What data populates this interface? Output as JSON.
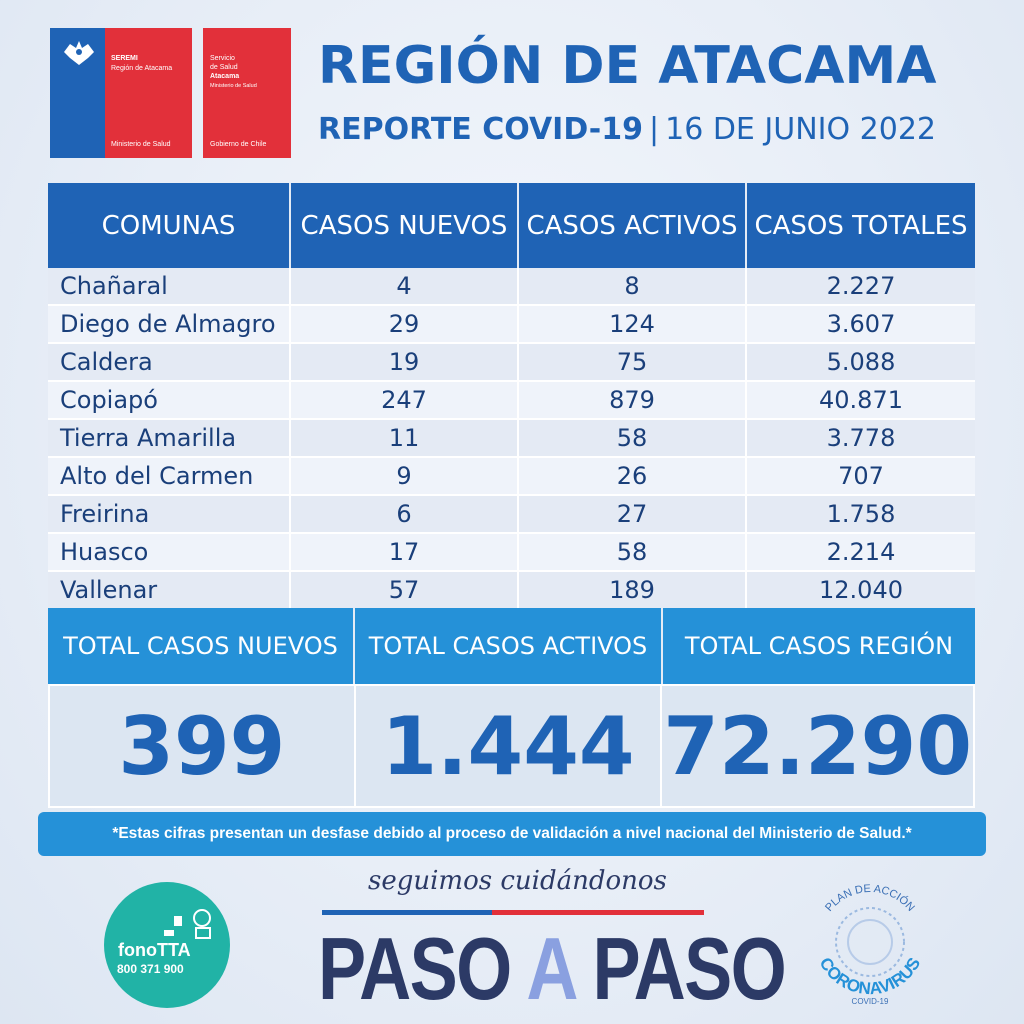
{
  "logos": {
    "seremi_line1": "SEREMI",
    "seremi_line2": "Región de Atacama",
    "seremi_footer": "Ministerio de Salud",
    "servicio_line1": "Servicio",
    "servicio_line2": "de Salud",
    "servicio_line3": "Atacama",
    "servicio_line4": "Ministerio de Salud",
    "servicio_footer": "Gobierno de Chile"
  },
  "header": {
    "title": "REGIÓN DE ATACAMA",
    "subtitle_bold": "REPORTE COVID-19",
    "separator": "|",
    "date": "16 DE JUNIO 2022"
  },
  "table": {
    "headers": [
      "COMUNAS",
      "CASOS NUEVOS",
      "CASOS ACTIVOS",
      "CASOS TOTALES"
    ],
    "rows": [
      {
        "comuna": "Chañaral",
        "nuevos": "4",
        "activos": "8",
        "totales": "2.227"
      },
      {
        "comuna": "Diego de Almagro",
        "nuevos": "29",
        "activos": "124",
        "totales": "3.607"
      },
      {
        "comuna": "Caldera",
        "nuevos": "19",
        "activos": "75",
        "totales": "5.088"
      },
      {
        "comuna": "Copiapó",
        "nuevos": "247",
        "activos": "879",
        "totales": "40.871"
      },
      {
        "comuna": "Tierra Amarilla",
        "nuevos": "11",
        "activos": "58",
        "totales": "3.778"
      },
      {
        "comuna": "Alto del Carmen",
        "nuevos": "9",
        "activos": "26",
        "totales": "707"
      },
      {
        "comuna": "Freirina",
        "nuevos": "6",
        "activos": "27",
        "totales": "1.758"
      },
      {
        "comuna": "Huasco",
        "nuevos": "17",
        "activos": "58",
        "totales": "2.214"
      },
      {
        "comuna": "Vallenar",
        "nuevos": "57",
        "activos": "189",
        "totales": "12.040"
      }
    ]
  },
  "totals": {
    "headers": [
      "TOTAL CASOS NUEVOS",
      "TOTAL CASOS ACTIVOS",
      "TOTAL CASOS REGIÓN"
    ],
    "values": [
      "399",
      "1.444",
      "72.290"
    ]
  },
  "note": "*Estas cifras presentan un desfase debido al proceso de validación a nivel nacional del Ministerio de Salud.*",
  "footer": {
    "fono_title": "fonoTTA",
    "fono_number": "800 371 900",
    "slogan": "seguimos cuidándonos",
    "paso1": "PASO ",
    "paso_a": "A",
    "paso2": " PASO",
    "plan_top": "PLAN DE ACCIÓN",
    "plan_main": "CORONAVIRUS",
    "plan_sub": "COVID-19"
  },
  "colors": {
    "primary_blue": "#1f63b5",
    "light_blue": "#2591d8",
    "red": "#e2303a",
    "teal": "#21b3a6",
    "navy": "#2c3a66"
  }
}
